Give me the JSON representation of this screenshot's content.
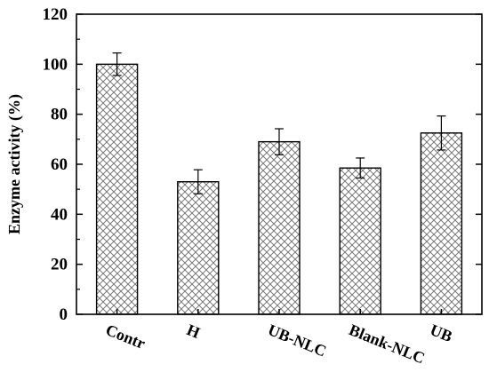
{
  "chart_data": {
    "type": "bar",
    "title": "",
    "xlabel": "",
    "ylabel": "Enzyme activity (%)",
    "categories": [
      "Contr",
      "H",
      "UB-NLC",
      "Blank-NLC",
      "UB"
    ],
    "values": [
      100,
      53,
      69,
      58.5,
      72.5
    ],
    "errors": [
      4.5,
      4.8,
      5.2,
      4.0,
      6.8
    ],
    "ylim": [
      0,
      120
    ],
    "yticks": [
      "0",
      "20",
      "40",
      "60",
      "80",
      "100",
      "120"
    ],
    "grid": false,
    "bar_fill": "crosshatch",
    "colors": {
      "bar_edge": "#000000",
      "hatch": "#6b6b6b",
      "background": "#ffffff"
    }
  }
}
